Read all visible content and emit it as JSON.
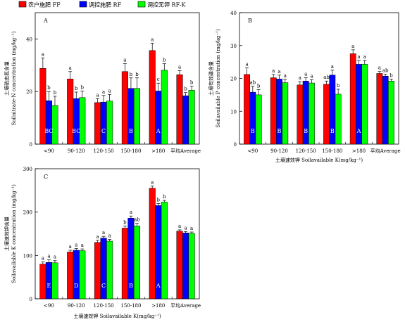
{
  "legend": {
    "items": [
      {
        "label": "农户施肥 FF",
        "color": "#ff0000"
      },
      {
        "label": "调控施肥 RF",
        "color": "#0000ff"
      },
      {
        "label": "调控无钾 RF-K",
        "color": "#00ff00"
      }
    ]
  },
  "chart_data": [
    {
      "panel": "A",
      "type": "bar",
      "categories": [
        "<90",
        "90-120",
        "120-150",
        "150-180",
        ">180",
        "平均Average"
      ],
      "series": [
        {
          "name": "农户施肥 FF",
          "color": "#ff0000",
          "values": [
            28.8,
            24.8,
            15.8,
            27.6,
            35.6,
            26.4
          ],
          "errors": [
            4.0,
            2.8,
            1.5,
            3.0,
            2.8,
            1.5
          ],
          "letters": [
            "a",
            "a",
            "a",
            "a",
            "a",
            "a"
          ]
        },
        {
          "name": "调控施肥 RF",
          "color": "#0000ff",
          "values": [
            16.5,
            17.3,
            16.0,
            21.2,
            20.2,
            18.4
          ],
          "errors": [
            3.5,
            2.5,
            2.5,
            4.0,
            3.0,
            1.2
          ],
          "letters": [
            "b",
            "b",
            "a",
            "b",
            "c",
            "b"
          ]
        },
        {
          "name": "调控无钾 RF-K",
          "color": "#00ff00",
          "values": [
            14.7,
            17.7,
            16.4,
            21.2,
            28.1,
            20.5
          ],
          "errors": [
            3.5,
            2.5,
            2.5,
            4.0,
            2.5,
            1.5
          ],
          "letters": [
            "b",
            "b",
            "a",
            "b",
            "b",
            "b"
          ]
        }
      ],
      "group_letters": [
        "BC",
        "BC",
        "C",
        "B",
        "A",
        ""
      ],
      "ylim": [
        0,
        50
      ],
      "yticks": [
        0,
        20,
        40
      ],
      "ylabel_zh": "土壤硝态氮含量",
      "ylabel_en": "Soilnitrate-N concentration (mg/kg⁻¹)",
      "xlabel": ""
    },
    {
      "panel": "B",
      "type": "bar",
      "categories": [
        "<90",
        "90-120",
        "120-150",
        "150-180",
        ">180",
        "平均Average"
      ],
      "series": [
        {
          "name": "农户施肥 FF",
          "color": "#ff0000",
          "values": [
            21.2,
            20.2,
            18.0,
            18.2,
            27.5,
            21.5
          ],
          "errors": [
            2.0,
            1.0,
            1.0,
            1.0,
            1.2,
            0.6
          ],
          "letters": [
            "a",
            "a",
            "a",
            "ab",
            "a",
            "a"
          ]
        },
        {
          "name": "调控施肥 RF",
          "color": "#0000ff",
          "values": [
            15.8,
            19.8,
            19.2,
            21.0,
            24.3,
            20.7
          ],
          "errors": [
            1.8,
            1.2,
            1.0,
            1.5,
            1.2,
            0.6
          ],
          "letters": [
            "ab",
            "a",
            "a",
            "a",
            "a",
            "ab"
          ]
        },
        {
          "name": "调控无钾 RF-K",
          "color": "#00ff00",
          "values": [
            15.0,
            18.7,
            18.6,
            15.2,
            24.3,
            19.2
          ],
          "errors": [
            1.6,
            1.0,
            1.0,
            1.5,
            1.2,
            0.6
          ],
          "letters": [
            "b",
            "a",
            "a",
            "b",
            "a",
            "b"
          ]
        }
      ],
      "group_letters": [
        "B",
        "B",
        "B",
        "B",
        "A",
        ""
      ],
      "ylim": [
        0,
        40
      ],
      "yticks": [
        0,
        10,
        20,
        30,
        40
      ],
      "ylabel_zh": "土壤有效磷含量",
      "ylabel_en": "Soilavailable P concentration (mg/kg⁻¹)",
      "xlabel": "土壤速效钾 Soilavailable K(mg/kg⁻¹)"
    },
    {
      "panel": "C",
      "type": "bar",
      "categories": [
        "<90",
        "90-120",
        "120-150",
        "150-180",
        ">180",
        "平均Average"
      ],
      "series": [
        {
          "name": "农户施肥 FF",
          "color": "#ff0000",
          "values": [
            80,
            108,
            130,
            163,
            255,
            156
          ],
          "errors": [
            5,
            4,
            5,
            5,
            5,
            3
          ],
          "letters": [
            "a",
            "a",
            "a",
            "b",
            "a",
            "a"
          ]
        },
        {
          "name": "调控施肥 RF",
          "color": "#0000ff",
          "values": [
            84,
            112,
            140,
            186,
            215,
            152
          ],
          "errors": [
            6,
            4,
            4,
            5,
            5,
            3
          ],
          "letters": [
            "a",
            "a",
            "a",
            "a",
            "b",
            "a"
          ]
        },
        {
          "name": "调控无钾 RF-K",
          "color": "#00ff00",
          "values": [
            83,
            111,
            133,
            168,
            223,
            151
          ],
          "errors": [
            5,
            4,
            4,
            6,
            4,
            3
          ],
          "letters": [
            "a",
            "a",
            "a",
            "ab",
            "b",
            "a"
          ]
        }
      ],
      "group_letters": [
        "E",
        "D",
        "C",
        "B",
        "A",
        ""
      ],
      "ylim": [
        0,
        300
      ],
      "yticks": [
        0,
        100,
        200,
        300
      ],
      "ylabel_zh": "土壤速效钾含量",
      "ylabel_en": "Soilavailable K concentration (mg/kg⁻¹)",
      "xlabel": "土壤速效钾 Soilavailable K(mg/kg⁻¹)"
    }
  ]
}
